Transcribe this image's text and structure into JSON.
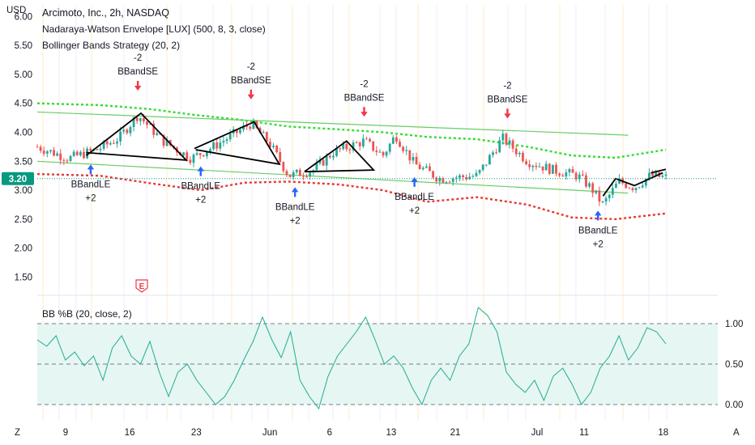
{
  "chart_data": [
    {
      "type": "candlestick",
      "symbol_title": "Arcimoto, Inc., 2h, NASDAQ",
      "currency_label": "USD",
      "current_price_label": "3.20",
      "indicators": [
        "Nadaraya-Watson Envelope [LUX] (500, 8, 3, close)",
        "Bollinger Bands Strategy (20, 2)"
      ],
      "ylim": [
        1.2,
        6.2
      ],
      "y_ticks": [
        "6.00",
        "5.50",
        "5.00",
        "4.50",
        "4.00",
        "3.50",
        "3.00",
        "2.50",
        "2.00",
        "1.50"
      ],
      "x_ticks": [
        "9",
        "16",
        "23",
        "Jun",
        "6",
        "13",
        "21",
        "Jul",
        "11",
        "18"
      ],
      "price_path": [
        [
          0,
          3.75
        ],
        [
          0.05,
          3.55
        ],
        [
          0.095,
          3.7
        ],
        [
          0.13,
          3.9
        ],
        [
          0.16,
          4.3
        ],
        [
          0.2,
          3.85
        ],
        [
          0.245,
          3.55
        ],
        [
          0.28,
          3.75
        ],
        [
          0.34,
          4.15
        ],
        [
          0.37,
          3.8
        ],
        [
          0.4,
          3.25
        ],
        [
          0.44,
          3.35
        ],
        [
          0.47,
          3.65
        ],
        [
          0.52,
          3.85
        ],
        [
          0.55,
          3.6
        ],
        [
          0.57,
          3.95
        ],
        [
          0.6,
          3.45
        ],
        [
          0.64,
          3.2
        ],
        [
          0.7,
          3.25
        ],
        [
          0.74,
          3.9
        ],
        [
          0.78,
          3.5
        ],
        [
          0.82,
          3.35
        ],
        [
          0.86,
          3.25
        ],
        [
          0.88,
          3.05
        ],
        [
          0.9,
          2.75
        ],
        [
          0.925,
          3.15
        ],
        [
          0.95,
          3.05
        ],
        [
          0.975,
          3.25
        ],
        [
          1,
          3.22
        ]
      ],
      "envelope_upper": [
        [
          0,
          4.5
        ],
        [
          0.1,
          4.47
        ],
        [
          0.18,
          4.4
        ],
        [
          0.25,
          4.3
        ],
        [
          0.32,
          4.22
        ],
        [
          0.4,
          4.1
        ],
        [
          0.48,
          4.05
        ],
        [
          0.55,
          4.0
        ],
        [
          0.62,
          3.92
        ],
        [
          0.7,
          3.88
        ],
        [
          0.78,
          3.75
        ],
        [
          0.85,
          3.6
        ],
        [
          0.92,
          3.56
        ],
        [
          1,
          3.7
        ]
      ],
      "envelope_lower": [
        [
          0,
          3.28
        ],
        [
          0.1,
          3.25
        ],
        [
          0.18,
          3.12
        ],
        [
          0.26,
          3.0
        ],
        [
          0.33,
          3.13
        ],
        [
          0.4,
          3.15
        ],
        [
          0.48,
          3.1
        ],
        [
          0.55,
          3.0
        ],
        [
          0.62,
          2.8
        ],
        [
          0.7,
          2.88
        ],
        [
          0.78,
          2.75
        ],
        [
          0.85,
          2.53
        ],
        [
          0.92,
          2.5
        ],
        [
          1,
          2.6
        ]
      ],
      "signals": [
        {
          "type": "short",
          "label": "BBandSE",
          "qty": "-2",
          "x": 0.16
        },
        {
          "type": "short",
          "label": "BBandSE",
          "qty": "-2",
          "x": 0.34
        },
        {
          "type": "short",
          "label": "BBandSE",
          "qty": "-2",
          "x": 0.52
        },
        {
          "type": "short",
          "label": "BBandSE",
          "qty": "-2",
          "x": 0.748
        },
        {
          "type": "long",
          "label": "BBandLE",
          "qty": "+2",
          "x": 0.085
        },
        {
          "type": "long",
          "label": "BBandLE",
          "qty": "+2",
          "x": 0.26
        },
        {
          "type": "long",
          "label": "BBandLE",
          "qty": "+2",
          "x": 0.41
        },
        {
          "type": "long",
          "label": "BBandLE",
          "qty": "+2",
          "x": 0.6
        },
        {
          "type": "long",
          "label": "BBandLE",
          "qty": "+2",
          "x": 0.892
        }
      ]
    },
    {
      "type": "line",
      "title": "BB %B (20, close, 2)",
      "ylim": [
        -0.2,
        1.3
      ],
      "y_ticks": [
        "1.00",
        "0.50",
        "0.00"
      ],
      "values": [
        0.8,
        0.72,
        0.85,
        0.55,
        0.65,
        0.48,
        0.6,
        0.3,
        0.7,
        0.85,
        0.6,
        0.5,
        0.78,
        0.4,
        0.1,
        0.4,
        0.5,
        0.3,
        0.15,
        0.0,
        0.1,
        0.3,
        0.55,
        0.78,
        1.08,
        0.8,
        0.58,
        0.9,
        0.3,
        0.1,
        -0.05,
        0.35,
        0.6,
        0.75,
        0.9,
        1.08,
        0.8,
        0.5,
        0.6,
        0.45,
        0.2,
        0.0,
        0.3,
        0.45,
        0.3,
        0.6,
        0.75,
        1.2,
        1.1,
        0.9,
        0.4,
        0.25,
        0.15,
        0.3,
        0.05,
        0.35,
        0.45,
        0.25,
        0.0,
        0.15,
        0.45,
        0.6,
        0.85,
        0.55,
        0.7,
        0.95,
        0.9,
        0.75
      ]
    }
  ],
  "sidebar": {
    "left_icon": "Z",
    "right_icon": "A"
  },
  "colors": {
    "up": "#26a69a",
    "down": "#ef5350",
    "envelope_upper": "#33dd33",
    "envelope_lower": "#e53935",
    "short_arrow": "#f23645",
    "long_arrow": "#2962ff",
    "price_badge": "#089981",
    "percent_b_line": "#22ab94",
    "percent_b_fill": "#e0f5f1"
  }
}
